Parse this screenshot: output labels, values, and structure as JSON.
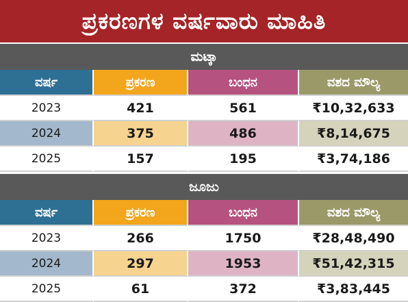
{
  "title": "ಪ್ರಕರಣಗಳ ವರ್ಷವಾರು ಮಾಹಿತಿ",
  "columns": [
    "ವರ್ಷ",
    "ಪ್ರಕರಣ",
    "ಬಂಧನ",
    "ವಶದ ಮೌಲ್ಯ"
  ],
  "sections": [
    {
      "name": "ಮಟ್ಕಾ",
      "rows": [
        {
          "year": "2023",
          "cases": "421",
          "arrests": "561",
          "value": "₹10,32,633"
        },
        {
          "year": "2024",
          "cases": "375",
          "arrests": "486",
          "value": "₹8,14,675"
        },
        {
          "year": "2025",
          "cases": "157",
          "arrests": "195",
          "value": "₹3,74,186"
        }
      ]
    },
    {
      "name": "ಜೂಜು",
      "rows": [
        {
          "year": "2023",
          "cases": "266",
          "arrests": "1750",
          "value": "₹28,48,490"
        },
        {
          "year": "2024",
          "cases": "297",
          "arrests": "1953",
          "value": "₹51,42,315"
        },
        {
          "year": "2025",
          "cases": "61",
          "arrests": "372",
          "value": "₹3,83,445"
        }
      ]
    }
  ],
  "colors": {
    "title_bg": "#a52427",
    "section_bg": "#595959",
    "year_header": "#2e6f94",
    "cases_header": "#f3a51c",
    "arrests_header": "#b5527f",
    "value_header": "#9b9968"
  }
}
